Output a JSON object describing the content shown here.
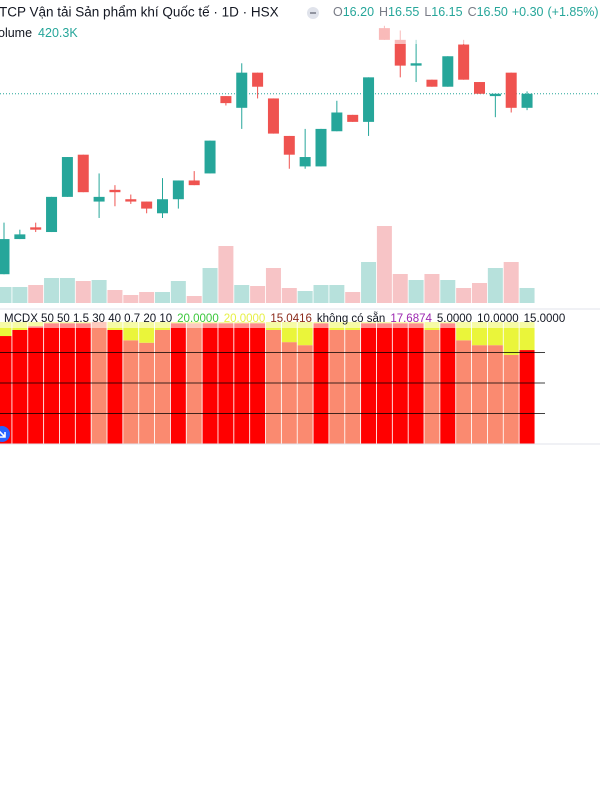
{
  "header": {
    "title": "TCP Vận tải Sản phẩm khí Quốc tế · 1D · HSX",
    "ohlc": [
      {
        "key": "O",
        "value": "16.20"
      },
      {
        "key": "H",
        "value": "16.55"
      },
      {
        "key": "L",
        "value": "16.15"
      },
      {
        "key": "C",
        "value": "16.50"
      }
    ],
    "change": "+0.30",
    "change_pct": "(+1.85%)"
  },
  "chart_data": [
    {
      "type": "candlestick",
      "up_color": "#26a69a",
      "down_color": "#ef5350",
      "ylim": [
        12.1,
        18.5
      ],
      "price_line": true,
      "open": [
        12.65,
        13.4,
        13.65,
        13.55,
        14.3,
        15.2,
        14.2,
        14.45,
        14.25,
        14.2,
        13.95,
        14.25,
        14.65,
        14.8,
        16.45,
        16.2,
        16.95,
        16.4,
        15.6,
        14.95,
        14.95,
        15.7,
        16.05,
        15.9,
        17.9,
        17.65,
        17.1,
        16.8,
        16.65,
        17.55,
        16.75,
        16.45,
        16.95,
        16.2
      ],
      "high": [
        13.75,
        13.6,
        13.75,
        14.3,
        15.15,
        15.2,
        14.8,
        14.55,
        14.35,
        14.2,
        14.7,
        14.65,
        14.85,
        15.5,
        16.45,
        17.15,
        16.95,
        16.4,
        15.6,
        15.75,
        15.75,
        16.35,
        16.05,
        16.85,
        17.95,
        17.85,
        17.65,
        16.8,
        17.3,
        17.65,
        16.75,
        16.5,
        16.95,
        16.55
      ],
      "low": [
        12.65,
        13.4,
        13.55,
        13.55,
        14.3,
        14.4,
        13.85,
        14.1,
        14.15,
        13.95,
        13.85,
        14.05,
        14.55,
        14.8,
        16.25,
        15.75,
        16.4,
        15.65,
        14.9,
        14.9,
        14.95,
        15.7,
        15.9,
        15.6,
        17.65,
        16.85,
        16.75,
        16.65,
        16.65,
        16.8,
        16.5,
        16.0,
        16.1,
        16.15
      ],
      "close": [
        13.4,
        13.5,
        13.6,
        14.3,
        15.15,
        14.4,
        14.3,
        14.4,
        14.2,
        14.05,
        14.25,
        14.65,
        14.55,
        15.5,
        16.3,
        16.95,
        16.65,
        15.65,
        15.2,
        15.15,
        15.75,
        16.1,
        15.9,
        16.85,
        17.65,
        17.1,
        17.15,
        16.65,
        17.3,
        16.8,
        16.5,
        16.5,
        16.2,
        16.5
      ]
    },
    {
      "type": "volume",
      "label": "olume",
      "last_label": "420.3K",
      "up_color": "#b7e1dc",
      "down_color": "#f7c4c6",
      "ylim": [
        0,
        2800
      ],
      "values": [
        448,
        448,
        504,
        700,
        700,
        616,
        644,
        364,
        224,
        308,
        308,
        616,
        196,
        980,
        1596,
        504,
        476,
        980,
        420,
        336,
        504,
        504,
        308,
        1148,
        2156,
        812,
        644,
        812,
        644,
        420,
        560,
        980,
        1148,
        420.3
      ]
    },
    {
      "type": "stacked_bar",
      "ylim": [
        0,
        20
      ],
      "yticks": [
        5,
        10,
        15
      ],
      "grid_color": "#000000",
      "legend": [
        {
          "text": "MCDX 50 50 1.5 30 40 0.7 20 10",
          "color": "#131722"
        },
        {
          "text": "20.0000",
          "color": "#3cc83c"
        },
        {
          "text": "20.0000",
          "color": "#e6f046"
        },
        {
          "text": "15.0416",
          "color": "#8b2a1a"
        },
        {
          "text": "không có sẵn",
          "color": "#131722"
        },
        {
          "text": "17.6874",
          "color": "#9c27b0"
        },
        {
          "text": "5.0000",
          "color": "#131722"
        },
        {
          "text": "10.0000",
          "color": "#131722"
        },
        {
          "text": "15.0000",
          "color": "#131722"
        }
      ],
      "series": [
        {
          "values": [
            17.7,
            18.7,
            19.3,
            19.8,
            19.8,
            19.8,
            20,
            18.7,
            17,
            16.6,
            18.7,
            19.8,
            19.8,
            19.8,
            19.8,
            19.8,
            19.8,
            18.7,
            16.7,
            16.2,
            19.8,
            18.7,
            18.7,
            19.8,
            19.8,
            19.8,
            19.8,
            18.7,
            19.8,
            17,
            16.2,
            16.2,
            14.6,
            15.4
          ],
          "colors": [
            "#ff0000",
            "#ff0000",
            "#ff0000",
            "#ff0000",
            "#ff0000",
            "#ff0000",
            "#fa8a70",
            "#ff0000",
            "#fa8a70",
            "#fa8a70",
            "#fa8a70",
            "#ff0000",
            "#fa8a70",
            "#ff0000",
            "#ff0000",
            "#ff0000",
            "#ff0000",
            "#fa8a70",
            "#fa8a70",
            "#fa8a70",
            "#ff0000",
            "#fa8a70",
            "#fa8a70",
            "#ff0000",
            "#ff0000",
            "#ff0000",
            "#ff0000",
            "#fa8a70",
            "#ff0000",
            "#fa8a70",
            "#fa8a70",
            "#fa8a70",
            "#fa8a70",
            "#ff0000"
          ]
        },
        {
          "color": "#eaf53a",
          "values": [
            2.3,
            1.3,
            0.7,
            0.2,
            0.2,
            0.2,
            0,
            1.3,
            3,
            3.4,
            1.3,
            0.2,
            0.2,
            0.2,
            0.2,
            0.2,
            0.2,
            1.3,
            3.3,
            3.8,
            0.2,
            1.3,
            1.3,
            0.2,
            0.2,
            0.2,
            0.2,
            1.3,
            0.2,
            3,
            3.8,
            3.8,
            5.4,
            4.6
          ]
        }
      ]
    }
  ]
}
